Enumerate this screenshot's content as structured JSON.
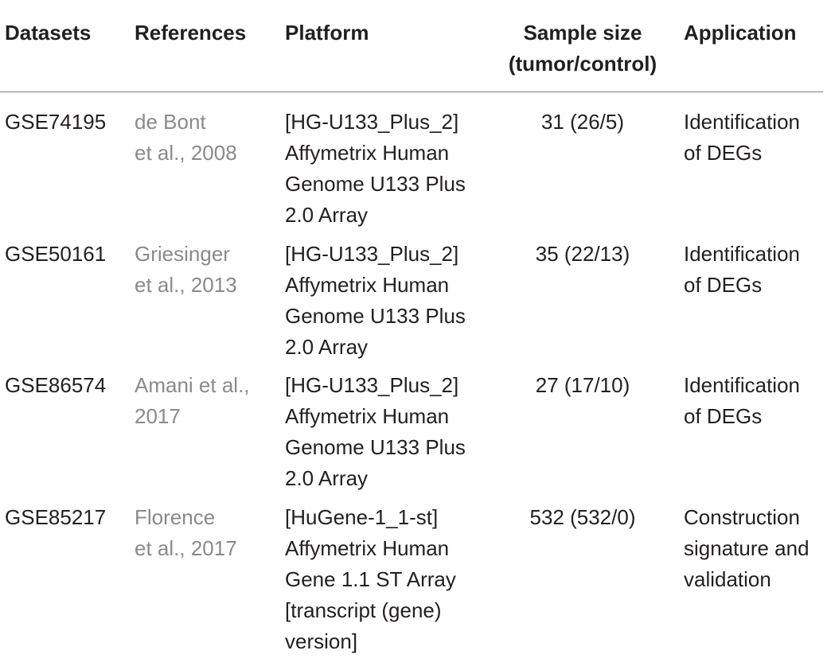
{
  "headers": {
    "datasets": "Datasets",
    "references": "References",
    "platform": "Platform",
    "sample_size_line1": "Sample size",
    "sample_size_line2": "(tumor/control)",
    "application": "Application"
  },
  "rows": [
    {
      "dataset": "GSE74195",
      "reference": [
        "de Bont",
        "et al., 2008"
      ],
      "platform": [
        "[HG-U133_Plus_2]",
        "Affymetrix Human",
        "Genome U133 Plus",
        "2.0 Array"
      ],
      "sample_size": "31 (26/5)",
      "application": [
        "Identification",
        "of DEGs"
      ]
    },
    {
      "dataset": "GSE50161",
      "reference": [
        "Griesinger",
        "et al., 2013"
      ],
      "platform": [
        "[HG-U133_Plus_2]",
        "Affymetrix Human",
        "Genome U133 Plus",
        "2.0 Array"
      ],
      "sample_size": "35 (22/13)",
      "application": [
        "Identification",
        "of DEGs"
      ]
    },
    {
      "dataset": "GSE86574",
      "reference": [
        "Amani et al.,",
        "2017"
      ],
      "platform": [
        "[HG-U133_Plus_2]",
        "Affymetrix Human",
        "Genome U133 Plus",
        "2.0 Array"
      ],
      "sample_size": "27 (17/10)",
      "application": [
        "Identification",
        "of DEGs"
      ]
    },
    {
      "dataset": "GSE85217",
      "reference": [
        "Florence",
        "et al., 2017"
      ],
      "platform": [
        "[HuGene-1_1-st]",
        "Affymetrix Human",
        "Gene 1.1 ST Array",
        "[transcript (gene)",
        "version]"
      ],
      "sample_size": "532 (532/0)",
      "application": [
        "Construction",
        "signature and",
        "validation"
      ]
    }
  ],
  "colors": {
    "text": "#231f20",
    "reference_link": "#8a8a8a",
    "rule": "#7f7f7f"
  }
}
